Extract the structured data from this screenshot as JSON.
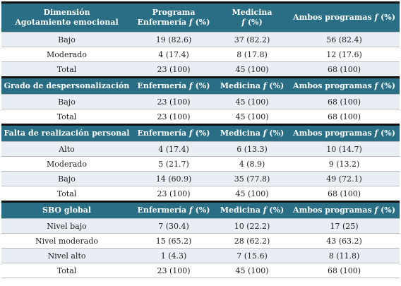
{
  "columns": {
    "programa_top": "Programa",
    "enfermeria": "Enfermería",
    "medicina": "Medicina",
    "ambos": "Ambos programas",
    "freq": "f",
    "pct": "(%)"
  },
  "sections": [
    {
      "title_lines": [
        "Dimensión",
        "Agotamiento emocional"
      ],
      "rows": [
        {
          "label": "Bajo",
          "enf": "19 (82.6)",
          "med": "37 (82.2)",
          "ambos": "56 (82.4)"
        },
        {
          "label": "Moderado",
          "enf": "4 (17.4)",
          "med": "8 (17.8)",
          "ambos": "12 (17.6)"
        },
        {
          "label": "Total",
          "enf": "23 (100)",
          "med": "45 (100)",
          "ambos": "68 (100)"
        }
      ]
    },
    {
      "title_lines": [
        "Grado de despersonalización"
      ],
      "rows": [
        {
          "label": "Bajo",
          "enf": "23 (100)",
          "med": "45 (100)",
          "ambos": "68 (100)"
        },
        {
          "label": "Total",
          "enf": "23 (100)",
          "med": "45 (100)",
          "ambos": "68 (100)"
        }
      ]
    },
    {
      "title_lines": [
        "Falta de realización personal"
      ],
      "rows": [
        {
          "label": "Alto",
          "enf": "4 (17.4)",
          "med": "6 (13.3)",
          "ambos": "10 (14.7)"
        },
        {
          "label": "Moderado",
          "enf": "5 (21.7)",
          "med": "4 (8.9)",
          "ambos": "9 (13.2)"
        },
        {
          "label": "Bajo",
          "enf": "14 (60.9)",
          "med": "35 (77.8)",
          "ambos": "49 (72.1)"
        },
        {
          "label": "Total",
          "enf": "23 (100)",
          "med": "45 (100)",
          "ambos": "68 (100)"
        }
      ]
    },
    {
      "title_lines": [
        "SBO global"
      ],
      "rows": [
        {
          "label": "Nivel bajo",
          "enf": "7 (30.4)",
          "med": "10 (22.2)",
          "ambos": "17 (25)"
        },
        {
          "label": "Nivel moderado",
          "enf": "15 (65.2)",
          "med": "28 (62.2)",
          "ambos": "43 (63.2)"
        },
        {
          "label": "Nivel alto",
          "enf": "1 (4.3)",
          "med": "7 (15.6)",
          "ambos": "8 (11.8)"
        },
        {
          "label": "Total",
          "enf": "23 (100)",
          "med": "45 (100)",
          "ambos": "68 (100)"
        }
      ]
    }
  ],
  "colors": {
    "header_bg": "#2a6e86",
    "shade_bg": "#e8eef3"
  }
}
